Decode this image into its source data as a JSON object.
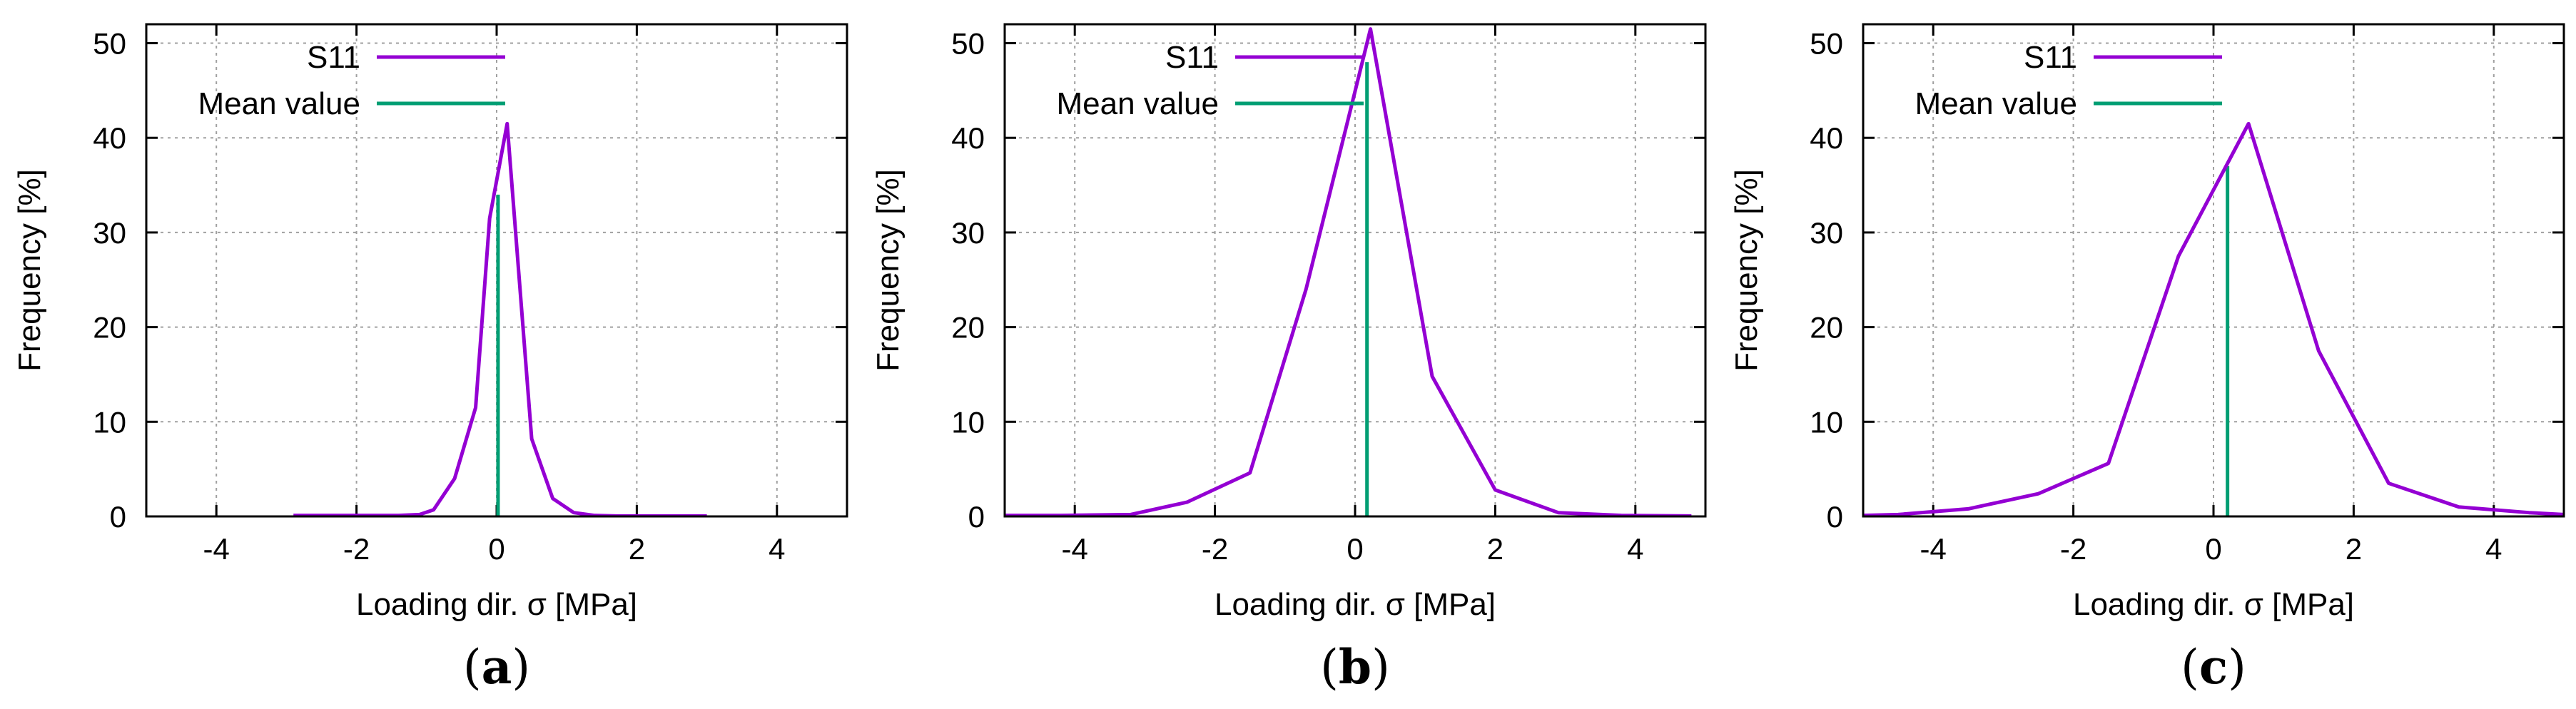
{
  "colors": {
    "s11": "#9400d3",
    "mean": "#009e73",
    "grid": "#a0a0a0",
    "axis": "#000000"
  },
  "chart_data": [
    {
      "type": "line",
      "panel": "a",
      "caption_open": "(",
      "caption_letter": "a",
      "caption_close": ")",
      "xlabel": "Loading dir. σ [MPa]",
      "ylabel": "Frequency [%]",
      "xlim": [
        -5,
        5
      ],
      "ylim": [
        0,
        52
      ],
      "xticks": [
        -4,
        -2,
        0,
        2,
        4
      ],
      "yticks": [
        0,
        10,
        20,
        30,
        40,
        50
      ],
      "legend": [
        "S11",
        "Mean value"
      ],
      "legend_position": "top-left",
      "series": [
        {
          "name": "S11",
          "x": [
            -2.9,
            -2.6,
            -2.3,
            -2.0,
            -1.7,
            -1.4,
            -1.1,
            -0.9,
            -0.6,
            -0.3,
            -0.1,
            0.15,
            0.5,
            0.8,
            1.1,
            1.4,
            1.7,
            2.0,
            2.3,
            2.6,
            3.0
          ],
          "y": [
            0.1,
            0.1,
            0.1,
            0.1,
            0.1,
            0.1,
            0.2,
            0.7,
            4,
            11.5,
            31.5,
            41.5,
            8.2,
            1.9,
            0.4,
            0.1,
            0.05,
            0.05,
            0.05,
            0.05,
            0.05
          ]
        }
      ],
      "mean_value": 0.02,
      "mean_height": 34
    },
    {
      "type": "line",
      "panel": "b",
      "caption_open": "(",
      "caption_letter": "b",
      "caption_close": ")",
      "xlabel": "Loading dir. σ [MPa]",
      "ylabel": "Frequency [%]",
      "xlim": [
        -5,
        5
      ],
      "ylim": [
        0,
        52
      ],
      "xticks": [
        -4,
        -2,
        0,
        2,
        4
      ],
      "yticks": [
        0,
        10,
        20,
        30,
        40,
        50
      ],
      "legend": [
        "S11",
        "Mean value"
      ],
      "legend_position": "top-left",
      "series": [
        {
          "name": "S11",
          "x": [
            -5.0,
            -4.2,
            -3.2,
            -2.4,
            -1.5,
            -0.7,
            0.22,
            1.1,
            2.0,
            2.9,
            3.8,
            4.8
          ],
          "y": [
            0.1,
            0.1,
            0.2,
            1.5,
            4.6,
            24,
            51.5,
            14.8,
            2.8,
            0.4,
            0.1,
            0.05
          ]
        }
      ],
      "mean_value": 0.17,
      "mean_height": 48
    },
    {
      "type": "line",
      "panel": "c",
      "caption_open": "(",
      "caption_letter": "c",
      "caption_close": ")",
      "xlabel": "Loading dir. σ [MPa]",
      "ylabel": "Frequency [%]",
      "xlim": [
        -5,
        5
      ],
      "ylim": [
        0,
        52
      ],
      "xticks": [
        -4,
        -2,
        0,
        2,
        4
      ],
      "yticks": [
        0,
        10,
        20,
        30,
        40,
        50
      ],
      "legend": [
        "S11",
        "Mean value"
      ],
      "legend_position": "top-left",
      "series": [
        {
          "name": "S11",
          "x": [
            -5.0,
            -4.5,
            -3.5,
            -2.5,
            -1.5,
            -0.5,
            0.5,
            1.5,
            2.5,
            3.5,
            4.5,
            5.0
          ],
          "y": [
            0.1,
            0.2,
            0.8,
            2.4,
            5.6,
            27.5,
            41.5,
            17.5,
            3.5,
            1.0,
            0.4,
            0.2
          ]
        }
      ],
      "mean_value": 0.2,
      "mean_height": 37
    }
  ]
}
